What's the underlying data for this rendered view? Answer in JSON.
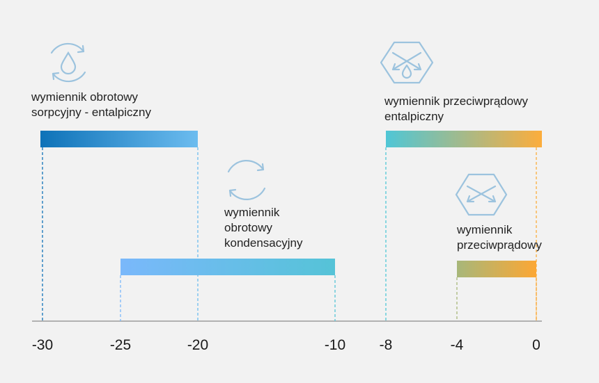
{
  "chart_data": {
    "type": "range-bar",
    "xlim": [
      -30,
      0
    ],
    "ticks": [
      "-30",
      "-25",
      "-20",
      "-10",
      "-8",
      "-4",
      "0"
    ],
    "tick_values": [
      -30,
      -25,
      -20,
      -10,
      -8,
      -4,
      0
    ],
    "bars": [
      {
        "id": "rotary-sorption",
        "label_lines": [
          "wymiennik obrotowy",
          "sorpcyjny - entalpiczny"
        ],
        "from": -30,
        "to": -20,
        "icon": "rotary-drop-icon",
        "colors": [
          "#0e72b8",
          "#6cbcef"
        ]
      },
      {
        "id": "rotary-condensation",
        "label_lines": [
          "wymiennik",
          "obrotowy",
          "kondensacyjny"
        ],
        "from": -25,
        "to": -10,
        "icon": "rotary-icon",
        "colors": [
          "#7ab8fb",
          "#55c3d7"
        ]
      },
      {
        "id": "counterflow-enthalpy",
        "label_lines": [
          "wymiennik przeciwprądowy",
          "entalpiczny"
        ],
        "from": -8,
        "to": 0,
        "icon": "hexagon-drop-icon",
        "colors": [
          "#4fc6d6",
          "#fcad3c"
        ]
      },
      {
        "id": "counterflow",
        "label_lines": [
          "wymiennik",
          "przeciwprądowy"
        ],
        "from": -4,
        "to": 0,
        "icon": "hexagon-icon",
        "colors": [
          "#a7b77a",
          "#fca734"
        ]
      }
    ]
  }
}
